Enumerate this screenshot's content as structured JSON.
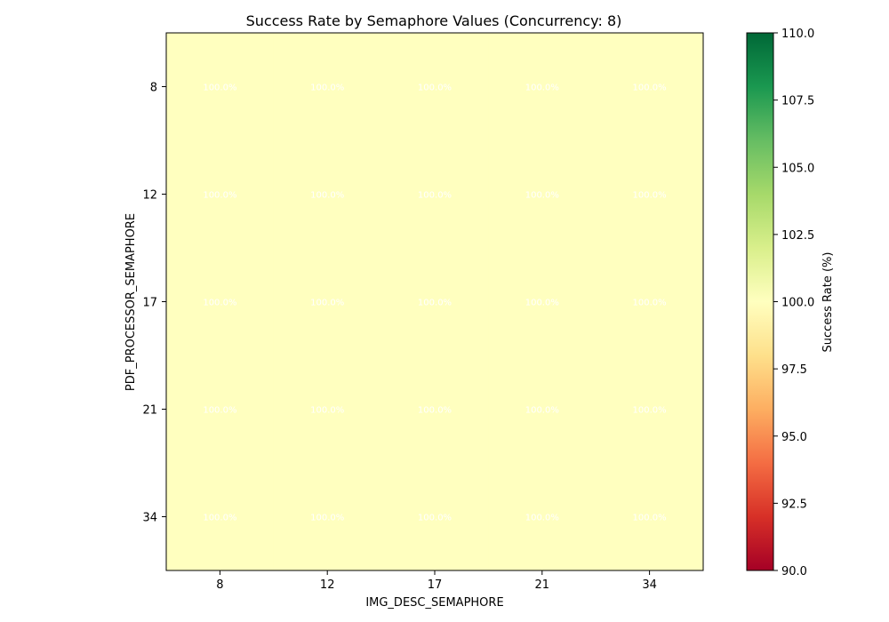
{
  "chart_data": {
    "type": "heatmap",
    "title": "Success Rate by Semaphore Values (Concurrency: 8)",
    "xlabel": "IMG_DESC_SEMAPHORE",
    "ylabel": "PDF_PROCESSOR_SEMAPHORE",
    "x_categories": [
      "8",
      "12",
      "17",
      "21",
      "34"
    ],
    "y_categories": [
      "8",
      "12",
      "17",
      "21",
      "34"
    ],
    "values": [
      [
        100.0,
        100.0,
        100.0,
        100.0,
        100.0
      ],
      [
        100.0,
        100.0,
        100.0,
        100.0,
        100.0
      ],
      [
        100.0,
        100.0,
        100.0,
        100.0,
        100.0
      ],
      [
        100.0,
        100.0,
        100.0,
        100.0,
        100.0
      ],
      [
        100.0,
        100.0,
        100.0,
        100.0,
        100.0
      ]
    ],
    "cell_labels": [
      [
        "100.0%",
        "100.0%",
        "100.0%",
        "100.0%",
        "100.0%"
      ],
      [
        "100.0%",
        "100.0%",
        "100.0%",
        "100.0%",
        "100.0%"
      ],
      [
        "100.0%",
        "100.0%",
        "100.0%",
        "100.0%",
        "100.0%"
      ],
      [
        "100.0%",
        "100.0%",
        "100.0%",
        "100.0%",
        "100.0%"
      ],
      [
        "100.0%",
        "100.0%",
        "100.0%",
        "100.0%",
        "100.0%"
      ]
    ],
    "colorbar": {
      "label": "Success Rate (%)",
      "colormap": "RdYlGn",
      "range": [
        90.0,
        110.0
      ],
      "ticks": [
        90.0,
        92.5,
        95.0,
        97.5,
        100.0,
        102.5,
        105.0,
        107.5,
        110.0
      ],
      "tick_labels": [
        "90.0",
        "92.5",
        "95.0",
        "97.5",
        "100.0",
        "102.5",
        "105.0",
        "107.5",
        "110.0"
      ]
    },
    "colors": {
      "cell_fill": "#ffffbf",
      "cell_text": "#ffffff",
      "cmap_stops": [
        "#a50026",
        "#d73027",
        "#f46d43",
        "#fdae61",
        "#fee08b",
        "#ffffbf",
        "#d9ef8b",
        "#a6d96a",
        "#66bd63",
        "#1a9850",
        "#006837"
      ]
    }
  }
}
